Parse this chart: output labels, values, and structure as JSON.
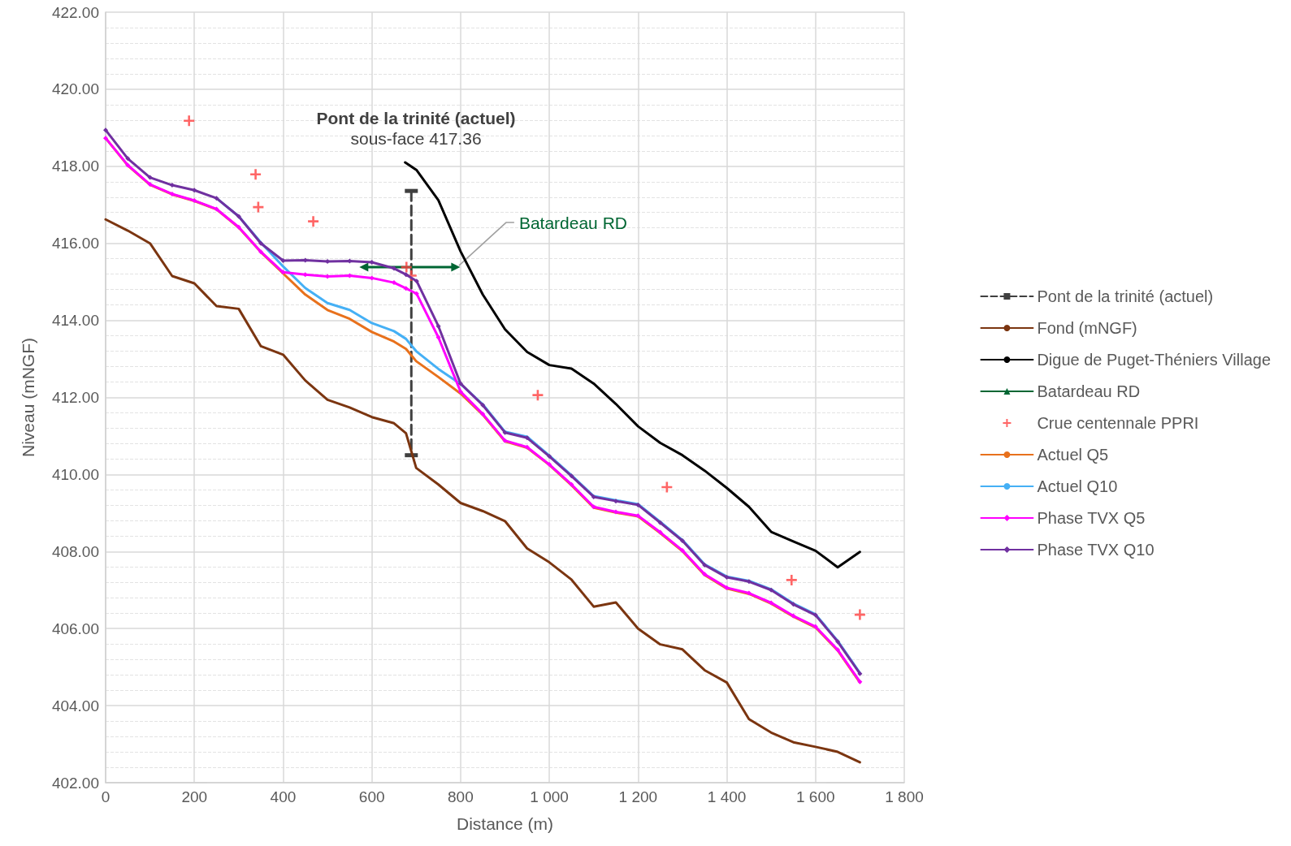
{
  "chart_data": {
    "type": "line",
    "xlabel": "Distance (m)",
    "ylabel": "Niveau (mNGF)",
    "xlim": [
      0,
      1800
    ],
    "xticks": [
      0,
      200,
      400,
      600,
      800,
      {
        "value": 1000,
        "label": "1 000"
      },
      {
        "value": 1200,
        "label": "1 200"
      },
      {
        "value": 1400,
        "label": "1 400"
      },
      {
        "value": 1600,
        "label": "1 600"
      },
      {
        "value": 1800,
        "label": "1 800"
      }
    ],
    "ylim": [
      402,
      422
    ],
    "yticks": [
      {
        "value": 402,
        "label": "402.00"
      },
      {
        "value": 404,
        "label": "404.00"
      },
      {
        "value": 406,
        "label": "406.00"
      },
      {
        "value": 408,
        "label": "408.00"
      },
      {
        "value": 410,
        "label": "410.00"
      },
      {
        "value": 412,
        "label": "412.00"
      },
      {
        "value": 414,
        "label": "414.00"
      },
      {
        "value": 416,
        "label": "416.00"
      },
      {
        "value": 418,
        "label": "418.00"
      },
      {
        "value": 420,
        "label": "420.00"
      },
      {
        "value": 422,
        "label": "422.00"
      }
    ],
    "grid": true,
    "legend": "right",
    "marker": "none",
    "line_style": "solid",
    "annotations": [
      "Pont de la trinité (actuel)\nsous-face 417.36",
      {
        "text": "Batardeau RD",
        "x": 789,
        "y": 415.38
      }
    ],
    "series": [
      {
        "name": "Pont de la trinité (actuel)",
        "color": "#404040",
        "line_style": "dashed",
        "marker": "square",
        "x": [
          689,
          689
        ],
        "values": [
          417.36,
          410.5
        ]
      },
      {
        "name": "Fond (mNGF)",
        "color": "#7b3510",
        "x": [
          0,
          50,
          100,
          150,
          200,
          250,
          300,
          350,
          400,
          450,
          500,
          550,
          600,
          650,
          677,
          700,
          750,
          800,
          850,
          900,
          950,
          1000,
          1050,
          1100,
          1150,
          1200,
          1250,
          1300,
          1350,
          1400,
          1450,
          1500,
          1550,
          1600,
          1650,
          1700
        ],
        "values": [
          416.62,
          416.33,
          416.0,
          415.15,
          414.96,
          414.37,
          414.3,
          413.33,
          413.11,
          412.44,
          411.94,
          411.74,
          411.49,
          411.33,
          411.07,
          410.17,
          409.74,
          409.26,
          409.05,
          408.79,
          408.08,
          407.72,
          407.27,
          406.57,
          406.68,
          406.0,
          405.59,
          405.46,
          404.92,
          404.6,
          403.65,
          403.3,
          403.05,
          402.93,
          402.8,
          402.53
        ]
      },
      {
        "name": "Digue de Puget-Théniers Village",
        "color": "#000000",
        "x": [
          675,
          701,
          750,
          800,
          850,
          900,
          950,
          1000,
          1050,
          1100,
          1150,
          1200,
          1250,
          1300,
          1350,
          1400,
          1450,
          1500,
          1550,
          1600,
          1650,
          1700
        ],
        "values": [
          418.1,
          417.9,
          417.12,
          415.79,
          414.67,
          413.77,
          413.18,
          412.84,
          412.75,
          412.36,
          411.83,
          411.25,
          410.82,
          410.5,
          410.1,
          409.65,
          409.16,
          408.51,
          408.26,
          408.02,
          407.59,
          407.99
        ]
      },
      {
        "name": "Batardeau RD",
        "color": "#006633",
        "marker": "triangle",
        "x": [
          582,
          789
        ],
        "values": [
          415.38,
          415.38
        ]
      },
      {
        "name": "Crue centennale PPRI",
        "type": "scatter",
        "color": "#ff4040",
        "marker": "cross",
        "x": [
          188,
          338,
          344,
          468,
          678,
          689,
          974,
          1265,
          1546,
          1700
        ],
        "values": [
          419.18,
          417.79,
          416.94,
          416.57,
          415.38,
          415.16,
          412.06,
          409.67,
          407.26,
          406.36
        ]
      },
      {
        "name": "Actuel Q5",
        "color": "#e8711c",
        "x": [
          0,
          50,
          100,
          150,
          200,
          250,
          300,
          350,
          400,
          450,
          500,
          550,
          600,
          650,
          677,
          700,
          750,
          800,
          850,
          900,
          950,
          1000,
          1050,
          1100,
          1150,
          1200,
          1250,
          1300,
          1350,
          1400,
          1450,
          1500,
          1550,
          1600,
          1650,
          1700
        ],
        "values": [
          418.73,
          418.02,
          417.52,
          417.27,
          417.1,
          416.88,
          416.41,
          415.77,
          415.22,
          414.67,
          414.27,
          414.04,
          413.7,
          413.45,
          413.26,
          412.94,
          412.53,
          412.1,
          411.55,
          410.86,
          410.69,
          410.25,
          409.72,
          409.14,
          409.01,
          408.91,
          408.48,
          408.01,
          407.39,
          407.04,
          406.9,
          406.65,
          406.31,
          406.03,
          405.43,
          404.6
        ]
      },
      {
        "name": "Actuel Q10",
        "color": "#45b0f5",
        "x": [
          250,
          300,
          350,
          400,
          450,
          500,
          550,
          600,
          650,
          677,
          700,
          750,
          800,
          850,
          900,
          950,
          1000,
          1050,
          1100,
          1150,
          1200,
          1250,
          1300,
          1350,
          1400,
          1450,
          1500,
          1550,
          1600,
          1650,
          1700
        ],
        "values": [
          417.17,
          416.7,
          416.02,
          415.4,
          414.84,
          414.45,
          414.27,
          413.93,
          413.72,
          413.52,
          413.2,
          412.74,
          412.35,
          411.82,
          411.11,
          410.98,
          410.49,
          409.98,
          409.44,
          409.33,
          409.23,
          408.77,
          408.3,
          407.67,
          407.35,
          407.24,
          407.02,
          406.65,
          406.37,
          405.68,
          404.85
        ]
      },
      {
        "name": "Phase TVX Q5",
        "color": "#ff00ff",
        "marker": "diamond",
        "x": [
          0,
          50,
          100,
          150,
          200,
          250,
          300,
          350,
          400,
          450,
          500,
          550,
          600,
          650,
          677,
          701,
          750,
          800,
          850,
          900,
          950,
          1000,
          1050,
          1100,
          1150,
          1200,
          1250,
          1300,
          1350,
          1400,
          1450,
          1500,
          1550,
          1600,
          1650,
          1700
        ],
        "values": [
          418.73,
          418.03,
          417.53,
          417.28,
          417.11,
          416.89,
          416.42,
          415.78,
          415.25,
          415.19,
          415.14,
          415.16,
          415.1,
          414.98,
          414.83,
          414.69,
          413.56,
          412.15,
          411.57,
          410.88,
          410.71,
          410.26,
          409.74,
          409.16,
          409.03,
          408.93,
          408.5,
          408.03,
          407.41,
          407.06,
          406.92,
          406.67,
          406.33,
          406.05,
          405.45,
          404.62
        ]
      },
      {
        "name": "Phase TVX Q10",
        "color": "#7030a0",
        "marker": "diamond",
        "x": [
          0,
          50,
          100,
          150,
          200,
          250,
          300,
          350,
          400,
          450,
          500,
          550,
          600,
          650,
          677,
          701,
          750,
          800,
          850,
          900,
          950,
          1000,
          1050,
          1100,
          1150,
          1200,
          1250,
          1300,
          1350,
          1400,
          1450,
          1500,
          1550,
          1600,
          1650,
          1700
        ],
        "values": [
          418.94,
          418.2,
          417.71,
          417.51,
          417.38,
          417.17,
          416.7,
          416.0,
          415.55,
          415.56,
          415.53,
          415.54,
          415.51,
          415.35,
          415.19,
          415.02,
          413.85,
          412.36,
          411.8,
          411.09,
          410.95,
          410.47,
          409.96,
          409.42,
          409.31,
          409.21,
          408.75,
          408.28,
          407.65,
          407.33,
          407.22,
          407.0,
          406.63,
          406.35,
          405.66,
          404.83
        ]
      }
    ]
  }
}
